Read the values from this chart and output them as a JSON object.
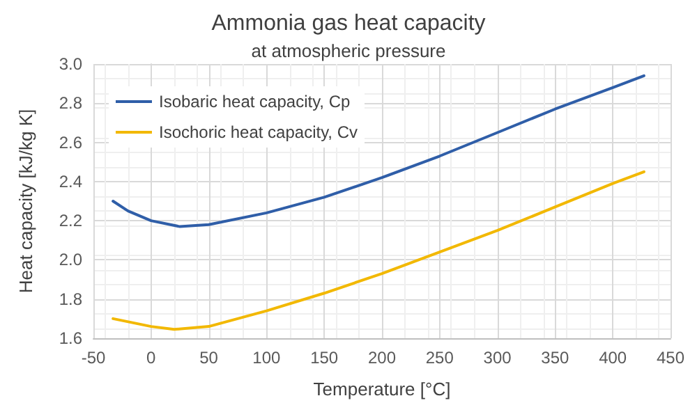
{
  "chart_data": {
    "type": "line",
    "title": "Ammonia gas heat capacity",
    "subtitle": "at atmospheric pressure",
    "xlabel": "Temperature [°C]",
    "ylabel": "Heat capacity [kJ/kg K]",
    "xlim": [
      -50,
      450
    ],
    "xticks": [
      -50,
      0,
      50,
      100,
      150,
      200,
      250,
      300,
      350,
      400,
      450
    ],
    "ylim": [
      1.6,
      3.0
    ],
    "yticks": [
      1.6,
      1.8,
      {
        "value": 2,
        "label": "2.0"
      },
      2.2,
      2.4,
      2.6,
      2.8,
      {
        "value": 3,
        "label": "3.0"
      }
    ],
    "grid": true,
    "legend": "top left",
    "marker": "none",
    "line_style": "solid",
    "series": [
      {
        "name": "Isobaric heat capacity, Cp",
        "color": "#2f5ea8",
        "x": [
          -33,
          -20,
          0,
          25,
          50,
          100,
          150,
          200,
          250,
          300,
          350,
          400,
          427
        ],
        "values": [
          2.3,
          2.25,
          2.2,
          2.17,
          2.18,
          2.24,
          2.32,
          2.42,
          2.53,
          2.65,
          2.77,
          2.88,
          2.94
        ]
      },
      {
        "name": "Isochoric heat capacity, Cv",
        "color": "#f2b800",
        "x": [
          -33,
          0,
          20,
          50,
          100,
          150,
          200,
          250,
          300,
          350,
          400,
          427
        ],
        "values": [
          1.7,
          1.66,
          1.645,
          1.66,
          1.74,
          1.83,
          1.93,
          2.04,
          2.15,
          2.27,
          2.39,
          2.45
        ]
      }
    ]
  }
}
